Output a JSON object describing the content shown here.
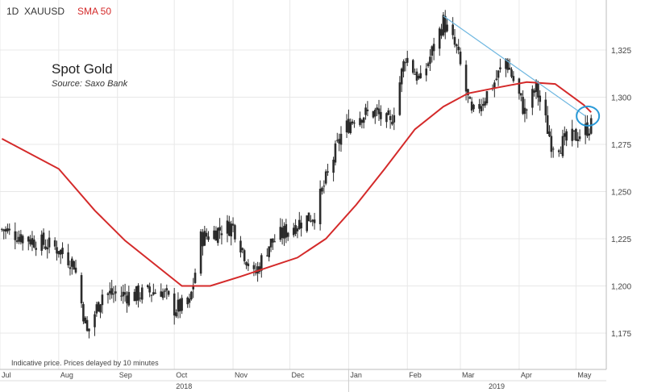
{
  "header": {
    "timeframe": "1D",
    "symbol": "XAUUSD",
    "indicator": "SMA 50"
  },
  "title": "Spot Gold",
  "subtitle": "Source: Saxo Bank",
  "note": "Indicative price. Prices delayed by 10 minutes",
  "colors": {
    "candles": "#2b2b2b",
    "sma": "#d42a2a",
    "trendline": "#6fb7e0",
    "circle": "#2a9ad8",
    "grid": "#e8e8e8"
  },
  "chart_data": {
    "type": "line",
    "ylim": [
      1160,
      1350
    ],
    "y_ticks": [
      1175,
      1200,
      1225,
      1250,
      1275,
      1300,
      1325
    ],
    "y_tick_labels": [
      "1,175",
      "1,200",
      "1,225",
      "1,250",
      "1,275",
      "1,300",
      "1,325"
    ],
    "x_tick_labels": [
      "Jul",
      "Aug",
      "Sep",
      "Oct",
      "Nov",
      "Dec",
      "Jan",
      "Feb",
      "Mar",
      "Apr",
      "May"
    ],
    "year_labels": [
      "2018",
      "2019"
    ],
    "price": {
      "name": "XAUUSD",
      "x": [
        "2018-07-02",
        "2018-07-16",
        "2018-07-31",
        "2018-08-09",
        "2018-08-16",
        "2018-08-24",
        "2018-09-10",
        "2018-09-24",
        "2018-10-01",
        "2018-10-09",
        "2018-10-15",
        "2018-10-25",
        "2018-11-01",
        "2018-11-12",
        "2018-11-20",
        "2018-12-03",
        "2018-12-14",
        "2018-12-28",
        "2019-01-04",
        "2019-01-15",
        "2019-01-23",
        "2019-01-31",
        "2019-02-08",
        "2019-02-20",
        "2019-02-27",
        "2019-03-07",
        "2019-03-19",
        "2019-03-25",
        "2019-04-04",
        "2019-04-10",
        "2019-04-18",
        "2019-04-23",
        "2019-05-02",
        "2019-05-09"
      ],
      "close": [
        1230,
        1225,
        1220,
        1212,
        1175,
        1196,
        1195,
        1198,
        1188,
        1190,
        1225,
        1230,
        1232,
        1205,
        1222,
        1232,
        1238,
        1280,
        1290,
        1292,
        1285,
        1322,
        1308,
        1340,
        1325,
        1290,
        1308,
        1320,
        1292,
        1305,
        1276,
        1275,
        1280,
        1285
      ]
    },
    "sma50": {
      "name": "SMA 50",
      "x": [
        "2018-07-02",
        "2018-08-01",
        "2018-08-20",
        "2018-09-05",
        "2018-09-20",
        "2018-10-05",
        "2018-10-20",
        "2018-11-05",
        "2018-11-20",
        "2018-12-05",
        "2018-12-20",
        "2019-01-05",
        "2019-01-20",
        "2019-02-05",
        "2019-02-20",
        "2019-03-05",
        "2019-03-20",
        "2019-04-05",
        "2019-04-20",
        "2019-05-05",
        "2019-05-09"
      ],
      "values": [
        1278,
        1262,
        1240,
        1224,
        1212,
        1200,
        1200,
        1205,
        1210,
        1215,
        1225,
        1243,
        1262,
        1283,
        1295,
        1302,
        1305,
        1308,
        1307,
        1296,
        1292
      ]
    },
    "trendline": {
      "x": [
        "2019-02-20",
        "2019-05-06"
      ],
      "values": [
        1343,
        1290
      ]
    },
    "highlight": {
      "x": "2019-05-06",
      "value": 1290
    }
  }
}
